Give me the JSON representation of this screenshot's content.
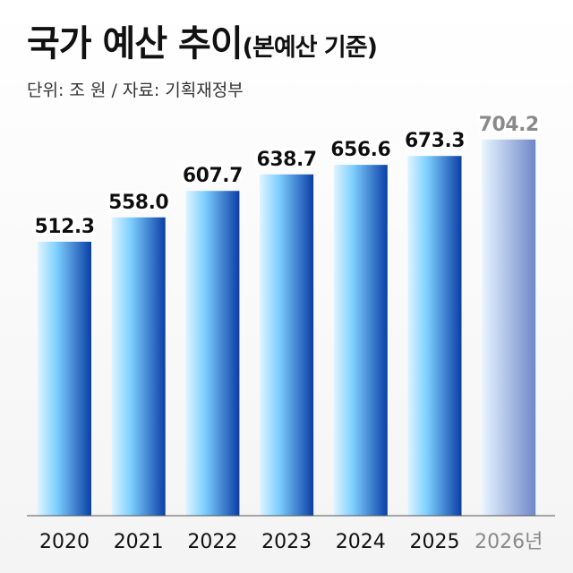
{
  "header": {
    "title": "국가 예산 추이",
    "subtitle": "(본예산 기준)",
    "unit_note": "단위: 조 원 / 자료: 기획재정부"
  },
  "colors": {
    "bar_light": "#dff4ff",
    "bar_mid": "#7fd0ff",
    "bar_dark": "#0a3fa6",
    "bar_forecast_light": "#e8f6ff",
    "bar_forecast_dark": "#6f88c8",
    "label": "#111111",
    "forecast_label": "#8a8a8a",
    "axis": "#555555"
  },
  "chart_data": {
    "type": "bar",
    "title": "국가 예산 추이",
    "subtitle": "(본예산 기준)",
    "categories": [
      "2020",
      "2021",
      "2022",
      "2023",
      "2024",
      "2025",
      "2026년"
    ],
    "values": [
      512.3,
      558.0,
      607.7,
      638.7,
      656.6,
      673.3,
      704.2
    ],
    "value_labels": [
      "512.3",
      "558.0",
      "607.7",
      "638.7",
      "656.6",
      "673.3",
      "704.2"
    ],
    "forecast": [
      false,
      false,
      false,
      false,
      false,
      false,
      true
    ],
    "unit": "조 원",
    "ylim": [
      0,
      750
    ],
    "grid": false,
    "legend": "none"
  }
}
